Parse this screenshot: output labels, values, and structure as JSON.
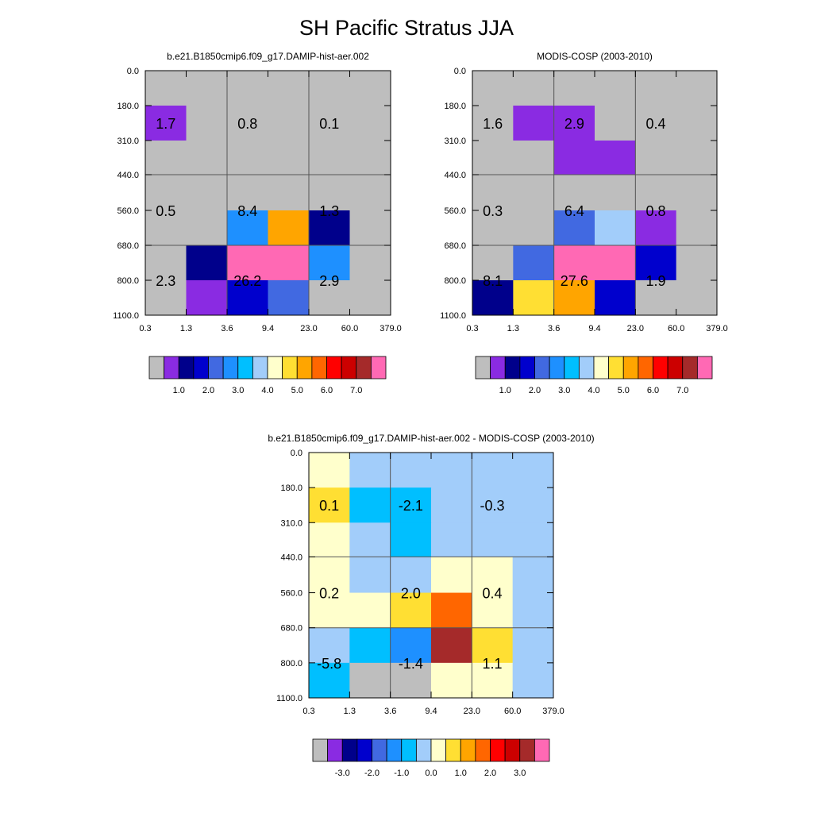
{
  "title": "SH Pacific Stratus JJA",
  "x_tick_labels": [
    "0.3",
    "1.3",
    "3.6",
    "9.4",
    "23.0",
    "60.0",
    "379.0"
  ],
  "y_tick_labels": [
    "0.0",
    "180.0",
    "310.0",
    "440.0",
    "560.0",
    "680.0",
    "800.0",
    "1100.0"
  ],
  "palettes": {
    "abs": [
      "#bebebe",
      "#8a2be2",
      "#00008b",
      "#0000cd",
      "#4169e1",
      "#1e90ff",
      "#00bfff",
      "#a2cdfa",
      "#ffffcc",
      "#ffdf33",
      "#ffa500",
      "#ff6600",
      "#ff0000",
      "#cc0000",
      "#a52a2a",
      "#ff69b4"
    ],
    "diff": [
      "#bebebe",
      "#8a2be2",
      "#00008b",
      "#0000cd",
      "#4169e1",
      "#1e90ff",
      "#00bfff",
      "#a2cdfa",
      "#ffffcc",
      "#ffdf33",
      "#ffa500",
      "#ff6600",
      "#ff0000",
      "#cc0000",
      "#a52a2a",
      "#ff69b4"
    ]
  },
  "chart_data": [
    {
      "type": "heatmap",
      "name": "model",
      "title": "b.e21.B1850cmip6.f09_g17.DAMIP-hist-aer.002",
      "xlabel": "",
      "ylabel": "",
      "x_bins": [
        "0.3",
        "1.3",
        "3.6",
        "9.4",
        "23.0",
        "60.0",
        "379.0"
      ],
      "y_bins": [
        "0.0",
        "180.0",
        "310.0",
        "440.0",
        "560.0",
        "680.0",
        "800.0",
        "1100.0"
      ],
      "colors": [
        [
          "#bebebe",
          "#bebebe",
          "#bebebe",
          "#bebebe",
          "#bebebe",
          "#bebebe"
        ],
        [
          "#8a2be2",
          "#bebebe",
          "#bebebe",
          "#bebebe",
          "#bebebe",
          "#bebebe"
        ],
        [
          "#bebebe",
          "#bebebe",
          "#bebebe",
          "#bebebe",
          "#bebebe",
          "#bebebe"
        ],
        [
          "#bebebe",
          "#bebebe",
          "#bebebe",
          "#bebebe",
          "#bebebe",
          "#bebebe"
        ],
        [
          "#bebebe",
          "#bebebe",
          "#1e90ff",
          "#ffa500",
          "#00008b",
          "#bebebe"
        ],
        [
          "#bebebe",
          "#00008b",
          "#ff69b4",
          "#ff69b4",
          "#1e90ff",
          "#bebebe"
        ],
        [
          "#bebebe",
          "#8a2be2",
          "#0000cd",
          "#4169e1",
          "#bebebe",
          "#bebebe"
        ]
      ],
      "summaries": [
        {
          "label": "1.7",
          "col": 0.5,
          "row": 1.5
        },
        {
          "label": "0.8",
          "col": 2.5,
          "row": 1.5
        },
        {
          "label": "0.1",
          "col": 4.5,
          "row": 1.5
        },
        {
          "label": "0.5",
          "col": 0.5,
          "row": 4.0
        },
        {
          "label": "8.4",
          "col": 2.5,
          "row": 4.0
        },
        {
          "label": "1.3",
          "col": 4.5,
          "row": 4.0
        },
        {
          "label": "2.3",
          "col": 0.5,
          "row": 6.0
        },
        {
          "label": "26.2",
          "col": 2.5,
          "row": 6.0
        },
        {
          "label": "2.9",
          "col": 4.5,
          "row": 6.0
        }
      ],
      "colorbar": {
        "palette": "abs",
        "labels": [
          "1.0",
          "2.0",
          "3.0",
          "4.0",
          "5.0",
          "6.0",
          "7.0"
        ]
      }
    },
    {
      "type": "heatmap",
      "name": "obs",
      "title": "MODIS-COSP (2003-2010)",
      "xlabel": "",
      "ylabel": "",
      "x_bins": [
        "0.3",
        "1.3",
        "3.6",
        "9.4",
        "23.0",
        "60.0",
        "379.0"
      ],
      "y_bins": [
        "0.0",
        "180.0",
        "310.0",
        "440.0",
        "560.0",
        "680.0",
        "800.0",
        "1100.0"
      ],
      "colors": [
        [
          "#bebebe",
          "#bebebe",
          "#bebebe",
          "#bebebe",
          "#bebebe",
          "#bebebe"
        ],
        [
          "#bebebe",
          "#8a2be2",
          "#8a2be2",
          "#bebebe",
          "#bebebe",
          "#bebebe"
        ],
        [
          "#bebebe",
          "#bebebe",
          "#8a2be2",
          "#8a2be2",
          "#bebebe",
          "#bebebe"
        ],
        [
          "#bebebe",
          "#bebebe",
          "#bebebe",
          "#bebebe",
          "#bebebe",
          "#bebebe"
        ],
        [
          "#bebebe",
          "#bebebe",
          "#4169e1",
          "#a2cdfa",
          "#8a2be2",
          "#bebebe"
        ],
        [
          "#bebebe",
          "#4169e1",
          "#ff69b4",
          "#ff69b4",
          "#0000cd",
          "#bebebe"
        ],
        [
          "#00008b",
          "#ffdf33",
          "#ffa500",
          "#0000cd",
          "#bebebe",
          "#bebebe"
        ]
      ],
      "summaries": [
        {
          "label": "1.6",
          "col": 0.5,
          "row": 1.5
        },
        {
          "label": "2.9",
          "col": 2.5,
          "row": 1.5
        },
        {
          "label": "0.4",
          "col": 4.5,
          "row": 1.5
        },
        {
          "label": "0.3",
          "col": 0.5,
          "row": 4.0
        },
        {
          "label": "6.4",
          "col": 2.5,
          "row": 4.0
        },
        {
          "label": "0.8",
          "col": 4.5,
          "row": 4.0
        },
        {
          "label": "8.1",
          "col": 0.5,
          "row": 6.0
        },
        {
          "label": "27.6",
          "col": 2.5,
          "row": 6.0
        },
        {
          "label": "1.9",
          "col": 4.5,
          "row": 6.0
        }
      ],
      "colorbar": {
        "palette": "abs",
        "labels": [
          "1.0",
          "2.0",
          "3.0",
          "4.0",
          "5.0",
          "6.0",
          "7.0"
        ]
      }
    },
    {
      "type": "heatmap",
      "name": "diff",
      "title": "b.e21.B1850cmip6.f09_g17.DAMIP-hist-aer.002 - MODIS-COSP (2003-2010)",
      "xlabel": "",
      "ylabel": "",
      "x_bins": [
        "0.3",
        "1.3",
        "3.6",
        "9.4",
        "23.0",
        "60.0",
        "379.0"
      ],
      "y_bins": [
        "0.0",
        "180.0",
        "310.0",
        "440.0",
        "560.0",
        "680.0",
        "800.0",
        "1100.0"
      ],
      "colors": [
        [
          "#ffffcc",
          "#a2cdfa",
          "#a2cdfa",
          "#a2cdfa",
          "#a2cdfa",
          "#a2cdfa"
        ],
        [
          "#ffdf33",
          "#00bfff",
          "#00bfff",
          "#a2cdfa",
          "#a2cdfa",
          "#a2cdfa"
        ],
        [
          "#ffffcc",
          "#a2cdfa",
          "#00bfff",
          "#a2cdfa",
          "#a2cdfa",
          "#a2cdfa"
        ],
        [
          "#ffffcc",
          "#a2cdfa",
          "#a2cdfa",
          "#ffffcc",
          "#ffffcc",
          "#a2cdfa"
        ],
        [
          "#ffffcc",
          "#ffffcc",
          "#ffdf33",
          "#ff6600",
          "#ffffcc",
          "#a2cdfa"
        ],
        [
          "#a2cdfa",
          "#00bfff",
          "#1e90ff",
          "#a52a2a",
          "#ffdf33",
          "#a2cdfa"
        ],
        [
          "#00bfff",
          "#bebebe",
          "#bebebe",
          "#ffffcc",
          "#ffffcc",
          "#a2cdfa"
        ]
      ],
      "summaries": [
        {
          "label": "0.1",
          "col": 0.5,
          "row": 1.5
        },
        {
          "label": "-2.1",
          "col": 2.5,
          "row": 1.5
        },
        {
          "label": "-0.3",
          "col": 4.5,
          "row": 1.5
        },
        {
          "label": "0.2",
          "col": 0.5,
          "row": 4.0
        },
        {
          "label": "2.0",
          "col": 2.5,
          "row": 4.0
        },
        {
          "label": "0.4",
          "col": 4.5,
          "row": 4.0
        },
        {
          "label": "-5.8",
          "col": 0.5,
          "row": 6.0
        },
        {
          "label": "-1.4",
          "col": 2.5,
          "row": 6.0
        },
        {
          "label": "1.1",
          "col": 4.5,
          "row": 6.0
        }
      ],
      "colorbar": {
        "palette": "diff",
        "labels": [
          "-3.0",
          "-2.0",
          "-1.0",
          "0.0",
          "1.0",
          "2.0",
          "3.0"
        ]
      }
    }
  ]
}
